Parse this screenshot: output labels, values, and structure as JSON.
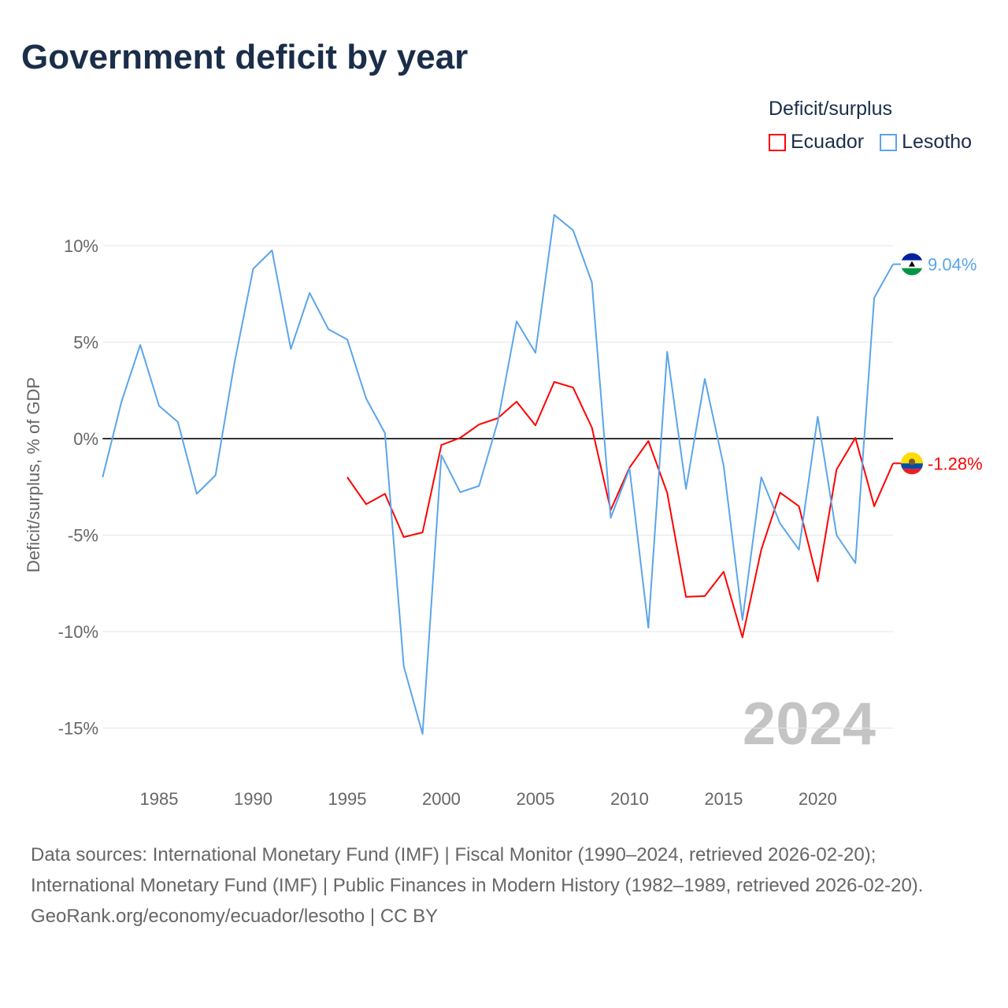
{
  "title": "Government deficit by year",
  "legend_title": "Deficit/surplus",
  "source_lines": [
    "Data sources: International Monetary Fund (IMF) | Fiscal Monitor (1990–2024, retrieved 2026-02-20); International Monetary Fund (IMF) | Public Finances in Modern History (1982–1989, retrieved 2026-02-20).",
    "GeoRank.org/economy/ecuador/lesotho | CC BY"
  ],
  "chart_data": {
    "type": "line",
    "title": "Government deficit by year",
    "xlabel": "",
    "ylabel": "Deficit/surplus, % of GDP",
    "xlim": [
      1982,
      2024
    ],
    "ylim": [
      -16,
      12
    ],
    "x_ticks": [
      1985,
      1990,
      1995,
      2000,
      2005,
      2010,
      2015,
      2020
    ],
    "y_ticks": [
      10,
      5,
      0,
      -5,
      -10,
      -15
    ],
    "y_tick_labels": [
      "10%",
      "5%",
      "0%",
      "-5%",
      "-10%",
      "-15%"
    ],
    "watermark_year": "2024",
    "legend_placement": "top-right",
    "series": [
      {
        "name": "Ecuador",
        "color": "#ff0000",
        "end_label": "-1.28%",
        "x": [
          1995,
          1996,
          1997,
          1998,
          1999,
          2000,
          2001,
          2002,
          2003,
          2004,
          2005,
          2006,
          2007,
          2008,
          2009,
          2010,
          2011,
          2012,
          2013,
          2014,
          2015,
          2016,
          2017,
          2018,
          2019,
          2020,
          2021,
          2022,
          2023,
          2024
        ],
        "values": [
          -2.0,
          -3.4,
          -2.86,
          -5.1,
          -4.86,
          -0.33,
          0.04,
          0.73,
          1.06,
          1.92,
          0.69,
          2.94,
          2.65,
          0.57,
          -3.7,
          -1.5,
          -0.12,
          -2.8,
          -8.2,
          -8.16,
          -6.9,
          -10.3,
          -5.75,
          -2.8,
          -3.5,
          -7.4,
          -1.6,
          0.04,
          -3.5,
          -1.28
        ]
      },
      {
        "name": "Lesotho",
        "color": "#5aa5eb",
        "end_label": "9.04%",
        "x": [
          1982,
          1983,
          1984,
          1985,
          1986,
          1987,
          1988,
          1989,
          1990,
          1991,
          1992,
          1993,
          1994,
          1995,
          1996,
          1997,
          1998,
          1999,
          2000,
          2001,
          2002,
          2003,
          2004,
          2005,
          2006,
          2007,
          2008,
          2009,
          2010,
          2011,
          2012,
          2013,
          2014,
          2015,
          2016,
          2017,
          2018,
          2019,
          2020,
          2021,
          2022,
          2023,
          2024
        ],
        "values": [
          -2.0,
          1.9,
          4.86,
          1.7,
          0.86,
          -2.86,
          -1.9,
          3.9,
          8.8,
          9.76,
          4.65,
          7.55,
          5.67,
          5.14,
          2.08,
          0.29,
          -11.8,
          -15.3,
          -0.86,
          -2.78,
          -2.45,
          0.9,
          6.08,
          4.45,
          11.6,
          10.8,
          8.1,
          -4.1,
          -1.55,
          -9.8,
          4.5,
          -2.6,
          3.1,
          -1.4,
          -9.4,
          -2.0,
          -4.4,
          -5.75,
          1.14,
          -5.0,
          -6.45,
          7.3,
          9.04
        ]
      }
    ]
  }
}
